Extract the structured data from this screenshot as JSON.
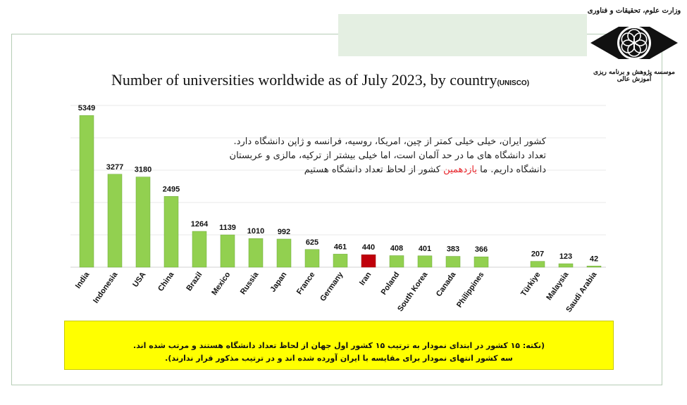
{
  "logo": {
    "top_text": "وزارت علوم، تحقیقات و فناوری",
    "bottom_text": "موسسه پژوهش و برنامه ریزی آموزش عالی"
  },
  "title": {
    "main": "Number of universities worldwide as of July 2023, by country",
    "source": "(UNISCO)"
  },
  "annotation": {
    "line1": "کشور ایران، خیلی خیلی کمتر از چین، امریکا، روسیه، فرانسه و ژاپن دانشگاه دارد.",
    "line2": "تعداد دانشگاه های ما در حد  آلمان است، اما خیلی بیشتر از ترکیه، مالزی و عربستان",
    "line3_before": "دانشگاه داریم. ما ",
    "line3_highlight": "یازدهمین",
    "line3_after": " کشور از لحاظ تعداد دانشگاه هستیم"
  },
  "note": {
    "line1": "(نکته: ۱۵ کشور در ابتدای نمودار به ترتیب ۱۵ کشور اول جهان از لحاظ تعداد دانشگاه هستند و مرتب شده اند.",
    "line2": "سه کشور انتهای نمودار برای مقایسه با ایران آورده شده اند و در ترتیب مذکور قرار ندارند)."
  },
  "colors": {
    "bar": "#92d050",
    "highlight": "#c0000b",
    "note_background": "#ffff00",
    "annotation_highlight": "#e8252b"
  },
  "chart_data": {
    "type": "bar",
    "title": "Number of universities worldwide as of July 2023, by country",
    "categories": [
      "India",
      "Indonesia",
      "USA",
      "China",
      "Brazil",
      "Mexico",
      "Russia",
      "Japan",
      "France",
      "Germany",
      "Iran",
      "Poland",
      "South Korea",
      "Canada",
      "Philippines",
      "Türkiye",
      "Malaysia",
      "Saudi Arabia"
    ],
    "values": [
      5349,
      3277,
      3180,
      2495,
      1264,
      1139,
      1010,
      992,
      625,
      461,
      440,
      408,
      401,
      383,
      366,
      207,
      123,
      42
    ],
    "highlight_category": "Iran",
    "value_labels": true,
    "ylim": [
      0,
      5700
    ],
    "grid": true,
    "legend": "none"
  }
}
